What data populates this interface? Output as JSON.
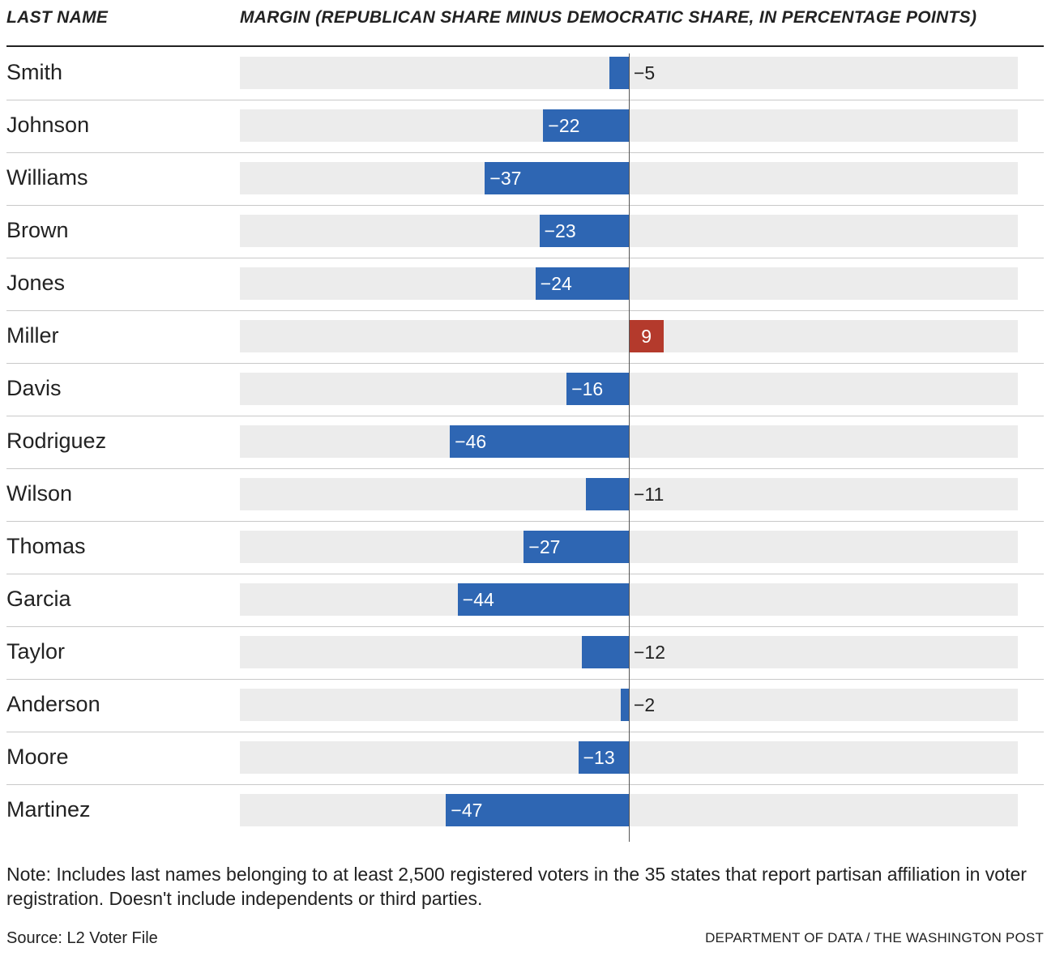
{
  "header": {
    "name_column": "LAST NAME",
    "margin_column": "MARGIN (REPUBLICAN SHARE MINUS DEMOCRATIC SHARE, IN PERCENTAGE POINTS)"
  },
  "colors": {
    "democratic": "#2e66b3",
    "republican": "#b43a2c",
    "track": "#ececec"
  },
  "chart_data": {
    "type": "bar",
    "orientation": "horizontal",
    "categories": [
      "Smith",
      "Johnson",
      "Williams",
      "Brown",
      "Jones",
      "Miller",
      "Davis",
      "Rodriguez",
      "Wilson",
      "Thomas",
      "Garcia",
      "Taylor",
      "Anderson",
      "Moore",
      "Martinez"
    ],
    "values": [
      -5,
      -22,
      -37,
      -23,
      -24,
      9,
      -16,
      -46,
      -11,
      -27,
      -44,
      -12,
      -2,
      -13,
      -47
    ],
    "labels": [
      "−5",
      "−22",
      "−37",
      "−23",
      "−24",
      "9",
      "−16",
      "−46",
      "−11",
      "−27",
      "−44",
      "−12",
      "−2",
      "−13",
      "−47"
    ],
    "xlim": [
      -100,
      100
    ],
    "grid": false
  },
  "footer": {
    "note": "Note: Includes last names belonging to at least 2,500 registered voters in the 35 states that report partisan affiliation in voter registration. Doesn't include independents or third parties.",
    "source": "Source: L2 Voter File",
    "credit": "DEPARTMENT OF DATA / THE WASHINGTON POST"
  }
}
